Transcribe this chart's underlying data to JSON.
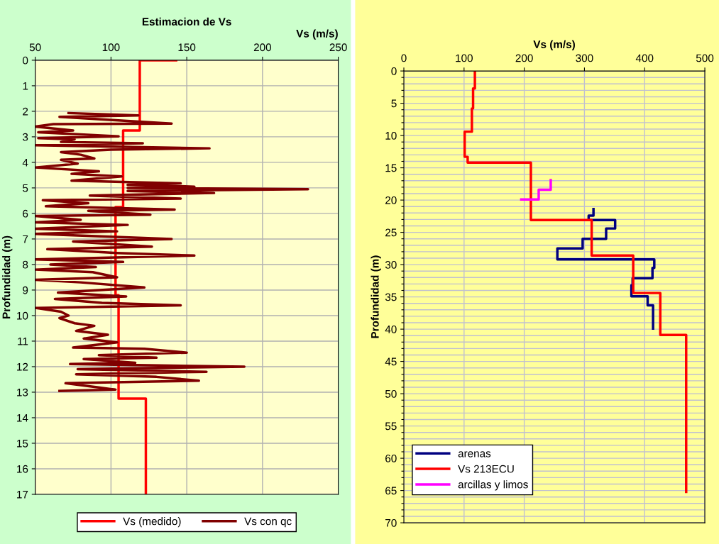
{
  "chart_data": [
    {
      "type": "line",
      "title": "Estimacion de Vs",
      "xlabel": "Vs (m/s)",
      "ylabel": "Profundidad (m)",
      "xlim": [
        50,
        250
      ],
      "xticks": [
        50,
        100,
        150,
        200,
        250
      ],
      "ylim": [
        17,
        0
      ],
      "yticks": [
        0,
        1,
        2,
        3,
        4,
        5,
        6,
        7,
        8,
        9,
        10,
        11,
        12,
        13,
        14,
        15,
        16,
        17
      ],
      "grid": true,
      "legend": "bottom",
      "marker": "none",
      "line_style": "solid",
      "series": [
        {
          "name": "Vs (medido)",
          "color": "#ff0000",
          "x": [
            143,
            119,
            119,
            108,
            108,
            103,
            103,
            105,
            105,
            123,
            123
          ],
          "values": [
            0,
            0,
            2.75,
            2.75,
            5.75,
            5.75,
            9.2,
            9.2,
            13.25,
            13.25,
            17
          ]
        },
        {
          "name": "Vs con qc",
          "color": "#800000",
          "x": [
            72,
            118,
            66,
            140,
            62,
            50,
            75,
            52,
            105,
            52,
            76,
            67,
            121,
            50,
            165,
            100,
            67,
            80,
            89,
            67,
            78,
            50,
            92,
            74,
            107,
            74,
            146,
            111,
            155,
            111,
            230,
            111,
            168,
            86,
            146,
            55,
            85,
            57,
            142,
            85,
            126,
            50,
            80,
            50,
            111,
            50,
            104,
            50,
            140,
            75,
            127,
            58,
            104,
            155,
            50,
            108,
            60,
            90,
            50,
            88,
            104,
            50,
            80,
            122,
            65,
            110,
            63,
            94,
            146,
            50,
            67,
            72,
            66,
            76,
            89,
            77,
            98,
            82,
            104,
            75,
            122,
            150,
            92,
            130,
            82,
            116,
            73,
            188,
            78,
            163,
            77,
            130,
            158,
            70,
            90,
            103,
            66
          ],
          "values": [
            2.07,
            2.16,
            2.22,
            2.48,
            2.5,
            2.6,
            2.75,
            2.82,
            2.98,
            3.05,
            3.1,
            3.2,
            3.25,
            3.33,
            3.45,
            3.5,
            3.6,
            3.7,
            3.85,
            3.9,
            4.05,
            4.2,
            4.35,
            4.45,
            4.55,
            4.72,
            4.82,
            4.88,
            4.95,
            5.0,
            5.05,
            5.12,
            5.2,
            5.3,
            5.42,
            5.48,
            5.6,
            5.72,
            5.85,
            5.9,
            6.05,
            6.1,
            6.25,
            6.35,
            6.45,
            6.6,
            6.7,
            6.8,
            7.0,
            7.1,
            7.3,
            7.4,
            7.55,
            7.65,
            7.8,
            7.9,
            8.0,
            8.1,
            8.2,
            8.3,
            8.5,
            8.6,
            8.7,
            8.9,
            9.1,
            9.25,
            9.35,
            9.5,
            9.6,
            9.7,
            9.85,
            10.0,
            10.1,
            10.3,
            10.4,
            10.6,
            10.75,
            10.9,
            11.05,
            11.25,
            11.3,
            11.45,
            11.55,
            11.65,
            11.7,
            11.85,
            11.9,
            12.0,
            12.1,
            12.2,
            12.3,
            12.4,
            12.55,
            12.65,
            12.8,
            12.9,
            12.95
          ]
        }
      ]
    },
    {
      "type": "line",
      "xlabel": "Vs (m/s)",
      "ylabel": "Profundidad (m)",
      "xlim": [
        0,
        500
      ],
      "xticks": [
        0,
        100,
        200,
        300,
        400,
        500
      ],
      "ylim": [
        70,
        0
      ],
      "yticks": [
        0,
        {
          "value": 1,
          "label": null
        },
        {
          "value": 2,
          "label": null
        },
        {
          "value": 3,
          "label": null
        },
        {
          "value": 4,
          "label": null
        },
        5,
        {
          "value": 6,
          "label": null
        },
        {
          "value": 7,
          "label": null
        },
        {
          "value": 8,
          "label": null
        },
        {
          "value": 9,
          "label": null
        },
        10,
        {
          "value": 11,
          "label": null
        },
        {
          "value": 12,
          "label": null
        },
        {
          "value": 13,
          "label": null
        },
        {
          "value": 14,
          "label": null
        },
        15,
        {
          "value": 16,
          "label": null
        },
        {
          "value": 17,
          "label": null
        },
        {
          "value": 18,
          "label": null
        },
        {
          "value": 19,
          "label": null
        },
        20,
        {
          "value": 21,
          "label": null
        },
        {
          "value": 22,
          "label": null
        },
        {
          "value": 23,
          "label": null
        },
        {
          "value": 24,
          "label": null
        },
        25,
        {
          "value": 26,
          "label": null
        },
        {
          "value": 27,
          "label": null
        },
        {
          "value": 28,
          "label": null
        },
        {
          "value": 29,
          "label": null
        },
        30,
        {
          "value": 31,
          "label": null
        },
        {
          "value": 32,
          "label": null
        },
        {
          "value": 33,
          "label": null
        },
        {
          "value": 34,
          "label": null
        },
        35,
        {
          "value": 36,
          "label": null
        },
        {
          "value": 37,
          "label": null
        },
        {
          "value": 38,
          "label": null
        },
        {
          "value": 39,
          "label": null
        },
        40,
        {
          "value": 41,
          "label": null
        },
        {
          "value": 42,
          "label": null
        },
        {
          "value": 43,
          "label": null
        },
        {
          "value": 44,
          "label": null
        },
        45,
        {
          "value": 46,
          "label": null
        },
        {
          "value": 47,
          "label": null
        },
        {
          "value": 48,
          "label": null
        },
        {
          "value": 49,
          "label": null
        },
        50,
        {
          "value": 51,
          "label": null
        },
        {
          "value": 52,
          "label": null
        },
        {
          "value": 53,
          "label": null
        },
        {
          "value": 54,
          "label": null
        },
        55,
        {
          "value": 56,
          "label": null
        },
        {
          "value": 57,
          "label": null
        },
        {
          "value": 58,
          "label": null
        },
        {
          "value": 59,
          "label": null
        },
        60,
        {
          "value": 61,
          "label": null
        },
        {
          "value": 62,
          "label": null
        },
        {
          "value": 63,
          "label": null
        },
        {
          "value": 64,
          "label": null
        },
        65,
        {
          "value": 66,
          "label": null
        },
        {
          "value": 67,
          "label": null
        },
        {
          "value": 68,
          "label": null
        },
        {
          "value": 69,
          "label": null
        },
        70
      ],
      "grid": true,
      "legend": "bottom left",
      "marker": "none",
      "line_style": "solid",
      "series": [
        {
          "name": "arenas",
          "color": "#000080",
          "x": [
            315,
            315,
            307,
            307,
            351,
            351,
            336,
            336,
            297,
            297,
            255,
            255,
            416,
            416,
            413,
            413,
            380,
            380,
            378,
            378,
            405,
            405,
            414,
            414
          ],
          "values": [
            21.4,
            22.4,
            22.4,
            23.1,
            23.1,
            24.4,
            24.4,
            26.0,
            26.0,
            27.5,
            27.5,
            29.2,
            29.2,
            30.5,
            30.5,
            32.1,
            32.1,
            33.2,
            33.2,
            34.9,
            34.9,
            36.3,
            36.3,
            39.9
          ]
        },
        {
          "name": "Vs 213ECU",
          "color": "#ff0000",
          "x": [
            118,
            118,
            115,
            115,
            113,
            113,
            101,
            101,
            106,
            106,
            211,
            211,
            312,
            312,
            381,
            381,
            426,
            426,
            469,
            469
          ],
          "values": [
            0,
            2.7,
            2.7,
            5.8,
            5.8,
            9.4,
            9.4,
            13.3,
            13.3,
            14.2,
            14.2,
            23.1,
            23.1,
            28.6,
            28.6,
            34.4,
            34.4,
            40.9,
            40.9,
            65.2
          ]
        },
        {
          "name": "arcillas y limos",
          "color": "#ff00ff",
          "x": [
            244,
            244,
            224,
            224,
            195
          ],
          "values": [
            16.9,
            18.4,
            18.4,
            19.9,
            19.9
          ]
        }
      ]
    }
  ]
}
